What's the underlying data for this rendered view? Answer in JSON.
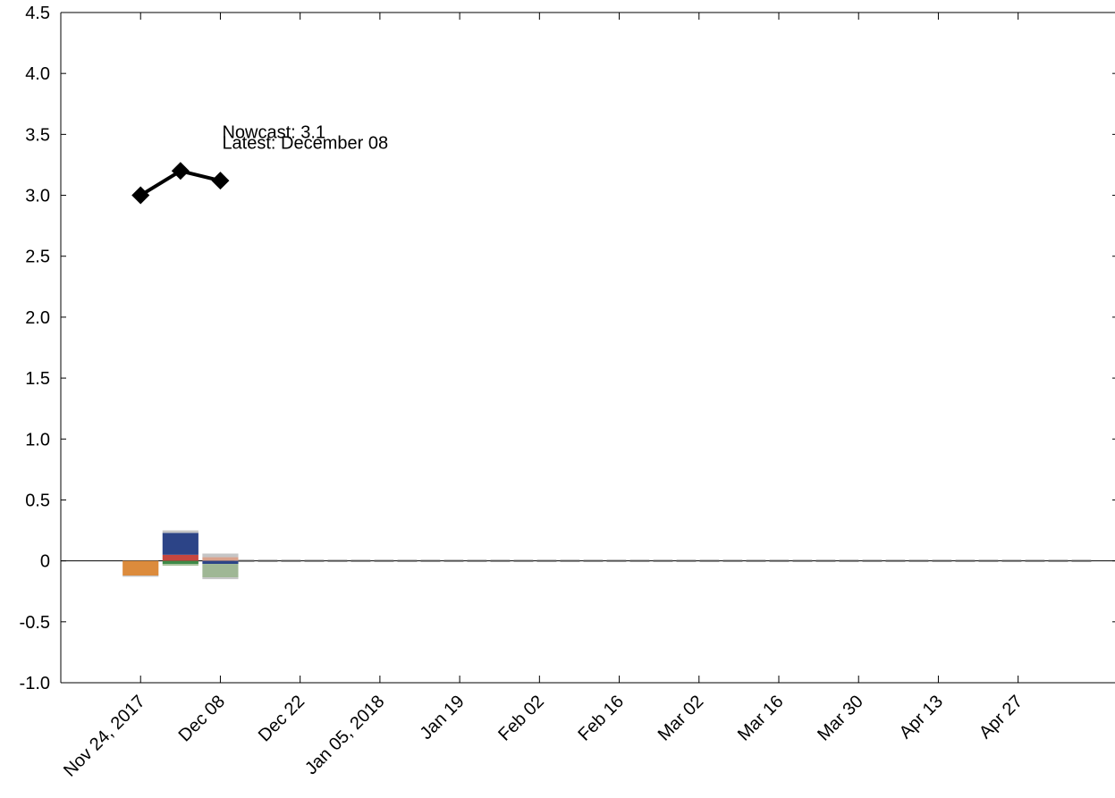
{
  "chart_data": {
    "type": "bar",
    "title": "",
    "xlabel": "",
    "ylabel": "",
    "ylim": [
      -1.0,
      4.5
    ],
    "xlim": [
      "2017-11-10",
      "2018-05-14"
    ],
    "grid": false,
    "legend": "none",
    "y_ticks": [
      {
        "value": 4.5,
        "label": "4.5"
      },
      {
        "value": 4.0,
        "label": "4.0"
      },
      {
        "value": 3.5,
        "label": "3.5"
      },
      {
        "value": 3.0,
        "label": "3.0"
      },
      {
        "value": 2.5,
        "label": "2.5"
      },
      {
        "value": 2.0,
        "label": "2.0"
      },
      {
        "value": 1.5,
        "label": "1.5"
      },
      {
        "value": 1.0,
        "label": "1.0"
      },
      {
        "value": 0.5,
        "label": "0.5"
      },
      {
        "value": 0,
        "label": "0"
      },
      {
        "value": -0.5,
        "label": "-0.5"
      },
      {
        "value": -1.0,
        "label": "-1.0"
      }
    ],
    "x_ticks": [
      {
        "date": "2017-11-24",
        "label": "Nov 24, 2017"
      },
      {
        "date": "2017-12-08",
        "label": "Dec 08"
      },
      {
        "date": "2017-12-22",
        "label": "Dec 22"
      },
      {
        "date": "2018-01-05",
        "label": "Jan 05, 2018"
      },
      {
        "date": "2018-01-19",
        "label": "Jan 19"
      },
      {
        "date": "2018-02-02",
        "label": "Feb 02"
      },
      {
        "date": "2018-02-16",
        "label": "Feb 16"
      },
      {
        "date": "2018-03-02",
        "label": "Mar 02"
      },
      {
        "date": "2018-03-16",
        "label": "Mar 16"
      },
      {
        "date": "2018-03-30",
        "label": "Mar 30"
      },
      {
        "date": "2018-04-13",
        "label": "Apr 13"
      },
      {
        "date": "2018-04-27",
        "label": "Apr 27"
      }
    ],
    "nowcast_line": {
      "color": "#000000",
      "points": [
        {
          "x": "2017-11-24",
          "y": 3.0
        },
        {
          "x": "2017-12-01",
          "y": 3.2
        },
        {
          "x": "2017-12-08",
          "y": 3.12
        }
      ]
    },
    "bars": [
      {
        "x": "2017-11-24",
        "segments": [
          {
            "value": -0.12,
            "color": "#dc8b3c"
          },
          {
            "value": -0.01,
            "color": "#c5c5c5"
          }
        ]
      },
      {
        "x": "2017-12-01",
        "segments": [
          {
            "value": 0.05,
            "color": "#c6463f"
          },
          {
            "value": 0.18,
            "color": "#2c4487"
          },
          {
            "value": 0.02,
            "color": "#c5c5c5"
          },
          {
            "value": -0.025,
            "color": "#3e8a48"
          },
          {
            "value": -0.015,
            "color": "#a7c29a"
          }
        ]
      },
      {
        "x": "2017-12-08",
        "segments": [
          {
            "value": 0.03,
            "color": "#d9a28c"
          },
          {
            "value": 0.03,
            "color": "#c5c5c5"
          },
          {
            "value": -0.025,
            "color": "#2c4487"
          },
          {
            "value": -0.11,
            "color": "#9fb795"
          },
          {
            "value": -0.015,
            "color": "#c5c5c5"
          }
        ]
      }
    ],
    "annotations": [
      {
        "key": "nowcast",
        "text": "Nowcast:  3.1",
        "x": "2017-12-08",
        "y": 3.47
      },
      {
        "key": "latest",
        "text": "Latest: December 08",
        "x": "2017-12-08",
        "y": 3.38
      }
    ]
  }
}
